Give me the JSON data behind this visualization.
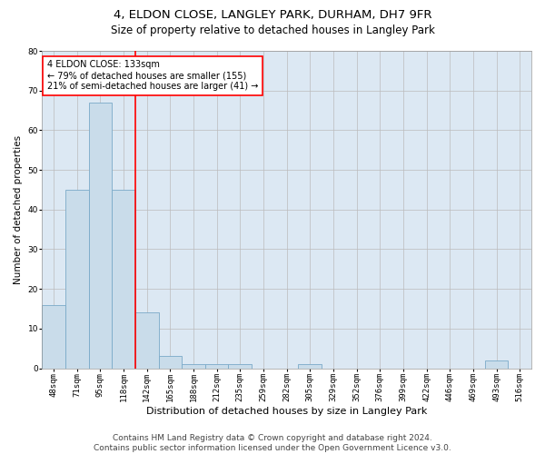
{
  "title": "4, ELDON CLOSE, LANGLEY PARK, DURHAM, DH7 9FR",
  "subtitle": "Size of property relative to detached houses in Langley Park",
  "xlabel": "Distribution of detached houses by size in Langley Park",
  "ylabel": "Number of detached properties",
  "bin_labels": [
    "48sqm",
    "71sqm",
    "95sqm",
    "118sqm",
    "142sqm",
    "165sqm",
    "188sqm",
    "212sqm",
    "235sqm",
    "259sqm",
    "282sqm",
    "305sqm",
    "329sqm",
    "352sqm",
    "376sqm",
    "399sqm",
    "422sqm",
    "446sqm",
    "469sqm",
    "493sqm",
    "516sqm"
  ],
  "bar_heights": [
    16,
    45,
    67,
    45,
    14,
    3,
    1,
    1,
    1,
    0,
    0,
    1,
    0,
    0,
    0,
    0,
    0,
    0,
    0,
    2,
    0
  ],
  "bar_color": "#c9dcea",
  "bar_edgecolor": "#7aaac8",
  "bar_linewidth": 0.6,
  "grid_color": "#bbbbbb",
  "background_color": "#dce8f3",
  "vline_color": "red",
  "vline_linewidth": 1.2,
  "annotation_text": "4 ELDON CLOSE: 133sqm\n← 79% of detached houses are smaller (155)\n21% of semi-detached houses are larger (41) →",
  "annotation_box_color": "white",
  "annotation_box_edgecolor": "red",
  "ylim": [
    0,
    80
  ],
  "yticks": [
    0,
    10,
    20,
    30,
    40,
    50,
    60,
    70,
    80
  ],
  "footer_text": "Contains HM Land Registry data © Crown copyright and database right 2024.\nContains public sector information licensed under the Open Government Licence v3.0.",
  "title_fontsize": 9.5,
  "subtitle_fontsize": 8.5,
  "xlabel_fontsize": 8,
  "ylabel_fontsize": 7.5,
  "tick_fontsize": 6.5,
  "annotation_fontsize": 7,
  "footer_fontsize": 6.5
}
